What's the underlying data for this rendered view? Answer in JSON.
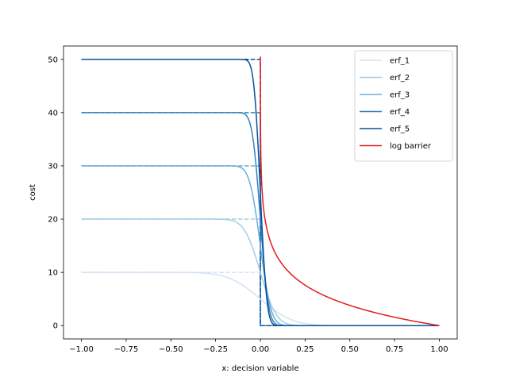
{
  "chart_data": {
    "type": "line",
    "title": "",
    "xlabel": "x: decision variable",
    "ylabel": "cost",
    "xlim": [
      -1.1,
      1.1
    ],
    "ylim": [
      -2.5,
      52.5
    ],
    "xticks": [
      -1.0,
      -0.75,
      -0.5,
      -0.25,
      0.0,
      0.25,
      0.5,
      0.75,
      1.0
    ],
    "xtick_labels": [
      "−1.00",
      "−0.75",
      "−0.50",
      "−0.25",
      "0.00",
      "0.25",
      "0.50",
      "0.75",
      "1.00"
    ],
    "yticks": [
      0,
      10,
      20,
      30,
      40,
      50
    ],
    "ytick_labels": [
      "0",
      "10",
      "20",
      "30",
      "40",
      "50"
    ],
    "grid": false,
    "legend_position": "top-right",
    "series": [
      {
        "name": "erf_1",
        "color": "#d2e3f3",
        "style": "solid",
        "height": 10,
        "steepness": 5
      },
      {
        "name": "erf_2",
        "color": "#a6cde4",
        "style": "solid",
        "height": 20,
        "steepness": 10
      },
      {
        "name": "erf_3",
        "color": "#6aaed6",
        "style": "solid",
        "height": 30,
        "steepness": 15
      },
      {
        "name": "erf_4",
        "color": "#3182bd",
        "style": "solid",
        "height": 40,
        "steepness": 20
      },
      {
        "name": "erf_5",
        "color": "#08519c",
        "style": "solid",
        "height": 50,
        "steepness": 25
      },
      {
        "name": "log barrier",
        "color": "#e41a1c",
        "style": "solid",
        "x_min": 0.0001,
        "x_max": 1.0,
        "y_top": 50.5,
        "y_end": 0.0
      }
    ],
    "step_references": [
      {
        "series": "erf_1",
        "color": "#d2e3f3",
        "style": "dashed",
        "level": 10
      },
      {
        "series": "erf_2",
        "color": "#a6cde4",
        "style": "dashed",
        "level": 20
      },
      {
        "series": "erf_3",
        "color": "#6aaed6",
        "style": "dashed",
        "level": 30
      },
      {
        "series": "erf_4",
        "color": "#3182bd",
        "style": "dashed",
        "level": 40
      },
      {
        "series": "erf_5",
        "color": "#08519c",
        "style": "dashed",
        "level": 50
      }
    ]
  }
}
